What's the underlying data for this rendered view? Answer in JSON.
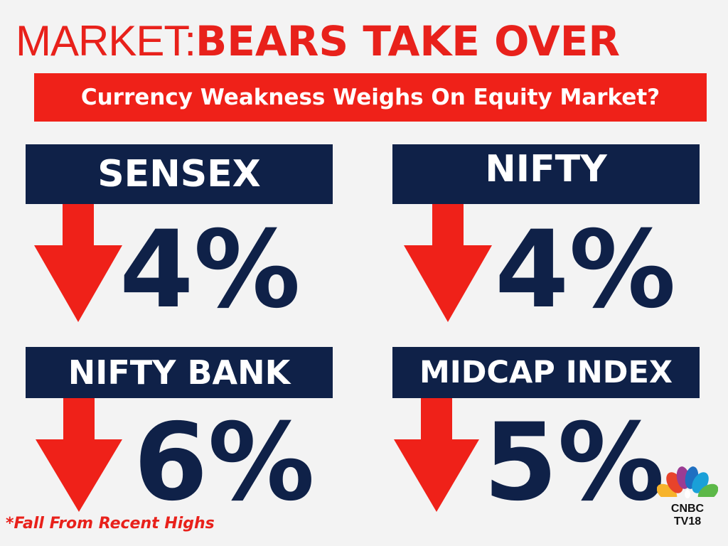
{
  "header": {
    "title_light": "MARKET:",
    "title_bold": "BEARS TAKE OVER",
    "subtitle": "Currency Weakness Weighs On Equity Market?"
  },
  "indices": [
    {
      "label": "SENSEX",
      "value": "4%",
      "direction": "down"
    },
    {
      "label": "NIFTY",
      "value": "4%",
      "direction": "down"
    },
    {
      "label": "NIFTY BANK",
      "value": "6%",
      "direction": "down"
    },
    {
      "label": "MIDCAP INDEX",
      "value": "5%",
      "direction": "down"
    }
  ],
  "footnote": "*Fall From Recent Highs",
  "logo": {
    "icon": "peacock-logo-icon",
    "line1": "CNBC",
    "line2": "TV18"
  },
  "colors": {
    "accent_red": "#e8211b",
    "navy": "#0f2148",
    "background": "#f3f3f3"
  }
}
